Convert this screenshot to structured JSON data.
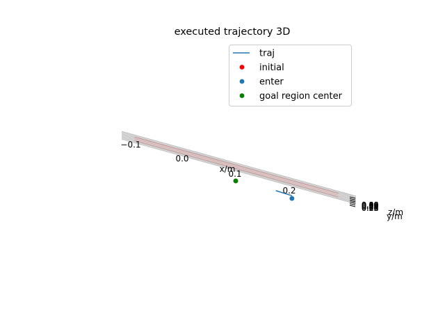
{
  "chart_data": {
    "type": "line",
    "projection": "3d",
    "title": "executed trajectory 3D",
    "xlabel": "x/m",
    "ylabel": "y/m",
    "zlabel": "z/m",
    "x_ticks": [
      "−0.1",
      "0.0",
      "0.1",
      "0.2"
    ],
    "yz_tick_stack": [
      "0.00",
      "0.02",
      "0.04",
      "0.06",
      "0.08",
      "0.10",
      "0.12",
      "0.14",
      "0.16",
      "0.18",
      "0.20",
      "0.22",
      "0.40",
      "0.50"
    ],
    "legend": {
      "placement": "upper-center",
      "entries": [
        {
          "label": "traj",
          "marker": "line",
          "color": "#1f77b4"
        },
        {
          "label": "initial",
          "marker": "dot",
          "color": "#ff0000"
        },
        {
          "label": "enter",
          "marker": "dot",
          "color": "#1f77b4"
        },
        {
          "label": "goal region center",
          "marker": "dot",
          "color": "#008000"
        }
      ]
    },
    "series": [
      {
        "name": "traj",
        "kind": "line",
        "color": "#1f77b4",
        "x": [
          0.175,
          0.205
        ],
        "y": [
          0.0,
          0.0
        ],
        "z": [
          0.0,
          0.0
        ]
      },
      {
        "name": "initial",
        "kind": "scatter",
        "color": "#ff0000",
        "x": [
          0.1
        ],
        "y": [
          0.0
        ],
        "z": [
          0.0
        ]
      },
      {
        "name": "enter",
        "kind": "scatter",
        "color": "#1f77b4",
        "x": [
          0.205
        ],
        "y": [
          0.0
        ],
        "z": [
          0.0
        ]
      },
      {
        "name": "goal region center",
        "kind": "scatter",
        "color": "#008000",
        "x": [
          0.1
        ],
        "y": [
          0.0
        ],
        "z": [
          0.0
        ]
      }
    ],
    "grid": true
  }
}
